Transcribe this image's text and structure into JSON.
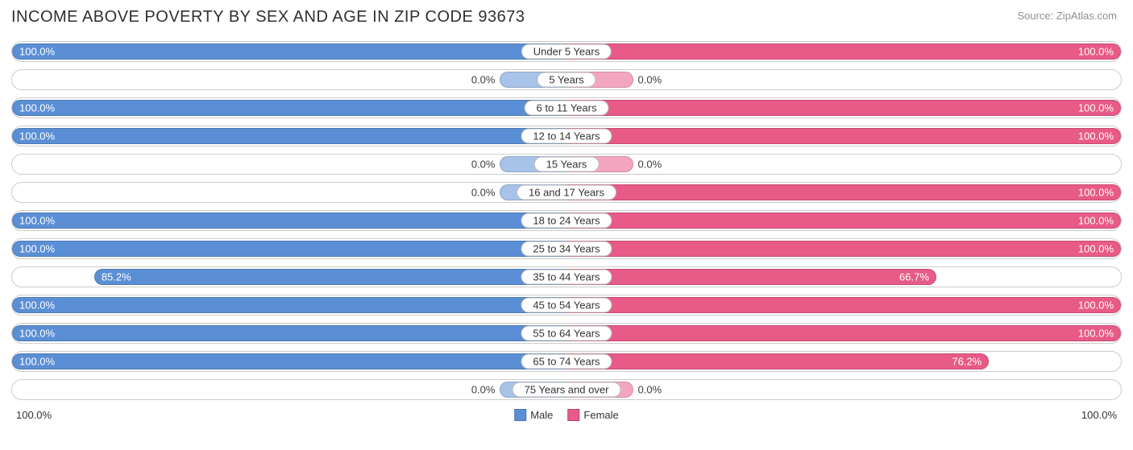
{
  "title": "INCOME ABOVE POVERTY BY SEX AND AGE IN ZIP CODE 93673",
  "source": "Source: ZipAtlas.com",
  "chart": {
    "type": "diverging-bar",
    "male_color_full": "#5b8fd5",
    "male_color_zero": "#a7c3e8",
    "female_color_full": "#e85a87",
    "female_color_zero": "#f4a6c0",
    "background_color": "#ffffff",
    "row_border_color": "#cccccc",
    "label_border_color": "#bbbbbb",
    "text_color": "#333333",
    "title_fontsize": 20,
    "label_fontsize": 13,
    "zero_bar_width_pct": 12,
    "max_value": 100.0,
    "categories": [
      {
        "label": "Under 5 Years",
        "male": 100.0,
        "female": 100.0
      },
      {
        "label": "5 Years",
        "male": 0.0,
        "female": 0.0
      },
      {
        "label": "6 to 11 Years",
        "male": 100.0,
        "female": 100.0
      },
      {
        "label": "12 to 14 Years",
        "male": 100.0,
        "female": 100.0
      },
      {
        "label": "15 Years",
        "male": 0.0,
        "female": 0.0
      },
      {
        "label": "16 and 17 Years",
        "male": 0.0,
        "female": 100.0
      },
      {
        "label": "18 to 24 Years",
        "male": 100.0,
        "female": 100.0
      },
      {
        "label": "25 to 34 Years",
        "male": 100.0,
        "female": 100.0
      },
      {
        "label": "35 to 44 Years",
        "male": 85.2,
        "female": 66.7
      },
      {
        "label": "45 to 54 Years",
        "male": 100.0,
        "female": 100.0
      },
      {
        "label": "55 to 64 Years",
        "male": 100.0,
        "female": 100.0
      },
      {
        "label": "65 to 74 Years",
        "male": 100.0,
        "female": 76.2
      },
      {
        "label": "75 Years and over",
        "male": 0.0,
        "female": 0.0
      }
    ]
  },
  "axis": {
    "left": "100.0%",
    "right": "100.0%"
  },
  "legend": {
    "male": "Male",
    "female": "Female"
  }
}
